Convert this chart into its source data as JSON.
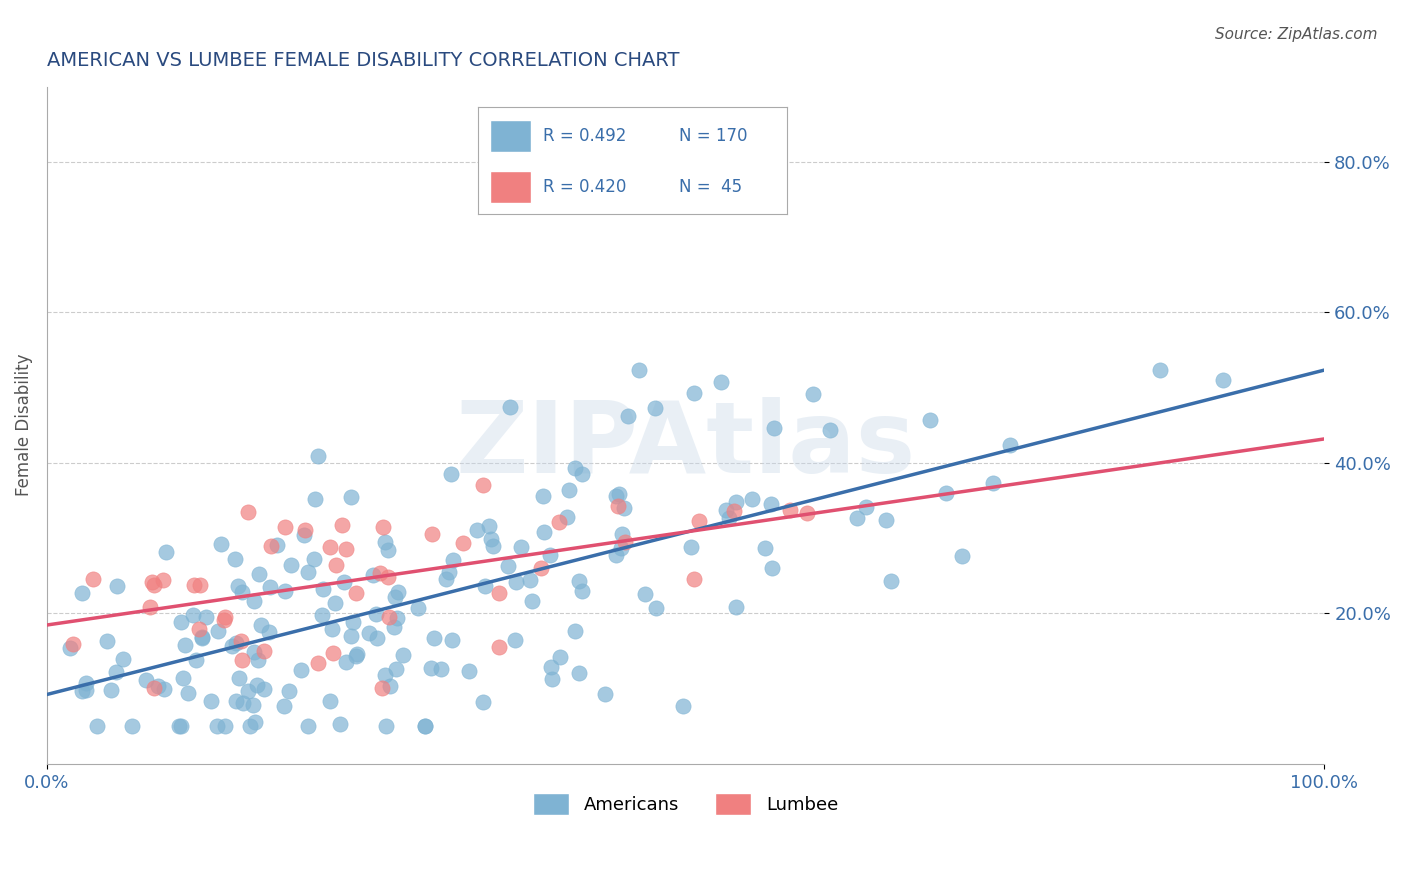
{
  "title": "AMERICAN VS LUMBEE FEMALE DISABILITY CORRELATION CHART",
  "source": "Source: ZipAtlas.com",
  "xlabel": "",
  "ylabel": "Female Disability",
  "xlim": [
    0.0,
    1.0
  ],
  "ylim": [
    0.0,
    0.9
  ],
  "xtick_labels": [
    "0.0%",
    "100.0%"
  ],
  "ytick_labels": [
    "20.0%",
    "40.0%",
    "60.0%",
    "80.0%"
  ],
  "ytick_vals": [
    0.2,
    0.4,
    0.6,
    0.8
  ],
  "legend_entries": [
    {
      "label": "R = 0.492   N = 170",
      "color": "#a8c4e0"
    },
    {
      "label": "R = 0.420   N =  45",
      "color": "#f4a8b8"
    }
  ],
  "legend_label_americans": "Americans",
  "legend_label_lumbee": "Lumbee",
  "americans_color": "#7fb3d3",
  "lumbee_color": "#f08080",
  "trendline_american_color": "#3a6eaa",
  "trendline_lumbee_color": "#e05070",
  "r_american": 0.492,
  "n_american": 170,
  "r_lumbee": 0.42,
  "n_lumbee": 45,
  "watermark": "ZIPAtlas",
  "background_color": "#ffffff",
  "grid_color": "#cccccc",
  "title_color": "#2a4a7f",
  "axis_label_color": "#555555",
  "tick_label_color": "#3a6eaa",
  "source_color": "#555555"
}
